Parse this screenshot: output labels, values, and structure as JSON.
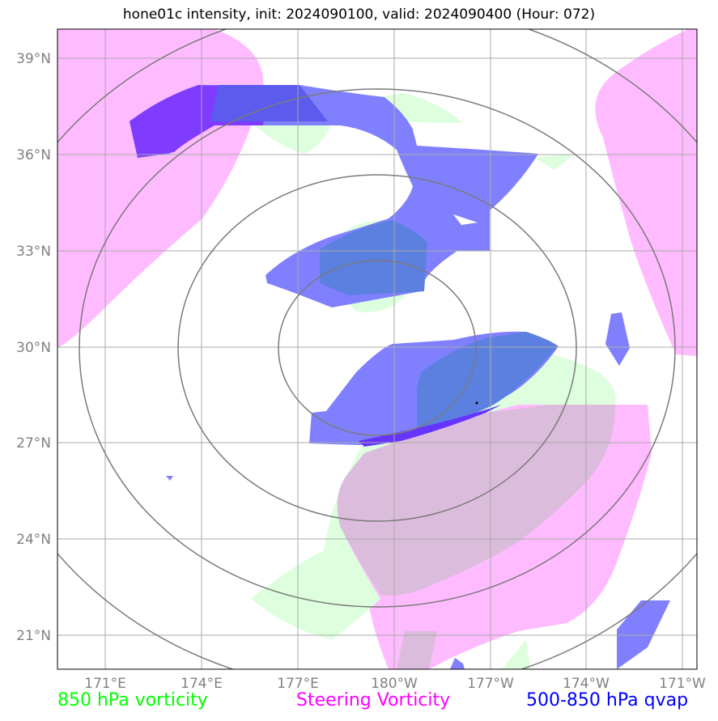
{
  "title": "hone01c intensity, init: 2024090100, valid: 2024090400 (Hour: 072)",
  "map": {
    "lat_range": [
      20,
      40
    ],
    "lon_range": [
      169.5,
      189.5
    ],
    "lat_ticks": [
      "39°N",
      "36°N",
      "33°N",
      "30°N",
      "27°N",
      "24°N",
      "21°N"
    ],
    "lon_ticks": [
      "171°E",
      "174°E",
      "177°E",
      "180°W",
      "177°W",
      "174°W",
      "171°W"
    ],
    "storm_marker": {
      "lat": 28.2,
      "lon": 182.6
    }
  },
  "legend": {
    "green": "850 hPa vorticity",
    "magenta": "Steering Vorticity",
    "blue": "500-850 hPa qvap"
  },
  "colors": {
    "green": "#00ff00",
    "magenta": "#ff00ff",
    "blue": "#0000ff",
    "green_fill": "#ddffdd",
    "magenta_fill": "#ffbbff",
    "blue_fill": "#8080ff"
  }
}
